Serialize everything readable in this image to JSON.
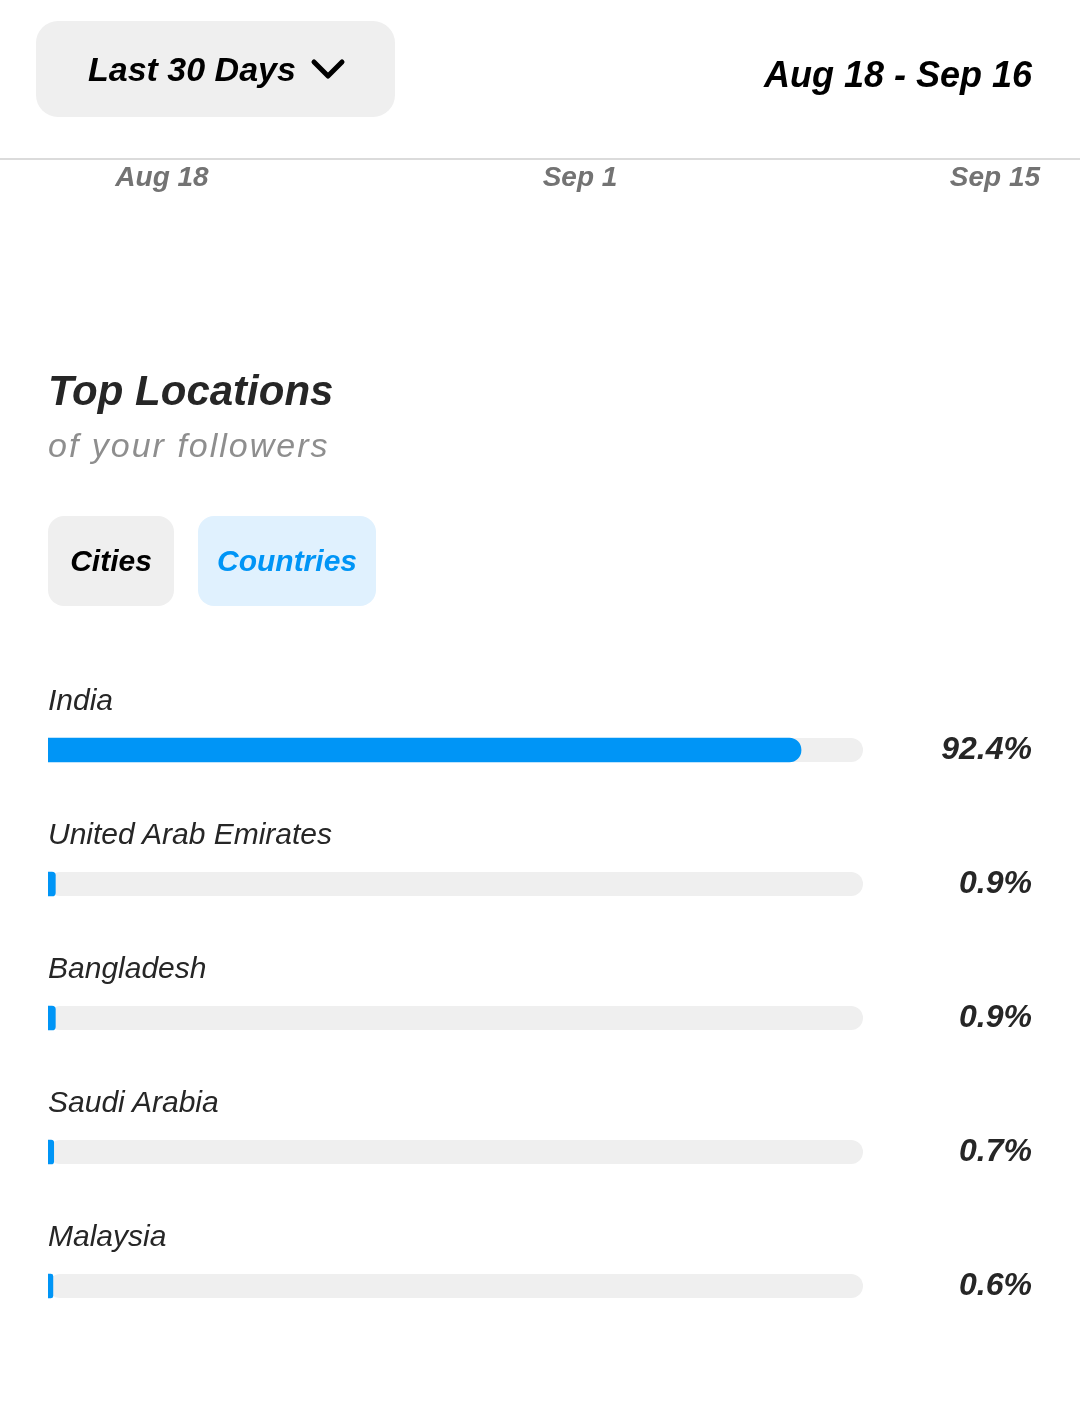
{
  "chart_data": {
    "type": "bar",
    "orientation": "horizontal",
    "title": "Top Locations",
    "subtitle": "of your followers",
    "categories": [
      "India",
      "United Arab Emirates",
      "Bangladesh",
      "Saudi Arabia",
      "Malaysia"
    ],
    "values": [
      92.4,
      0.9,
      0.9,
      0.7,
      0.6
    ],
    "color": "#0095f6",
    "value_labels": [
      "92.4%",
      "0.9%",
      "0.9%",
      "0.7%",
      "0.6%"
    ],
    "xlim": [
      0,
      100
    ],
    "tick_labels": false,
    "annotations": [
      "Last 30 Days",
      "Aug 18 - Sep 16",
      "Aug 18",
      "Sep 1",
      "Sep 15",
      "Cities",
      "Countries"
    ]
  }
}
